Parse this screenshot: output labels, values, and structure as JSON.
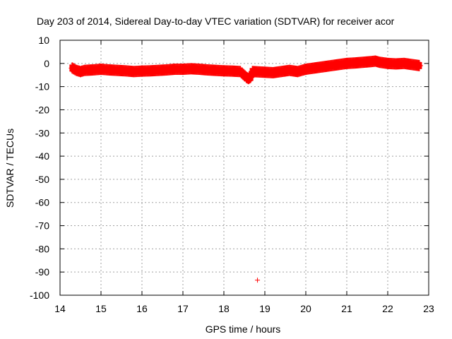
{
  "chart_data": {
    "type": "scatter",
    "title": "Day 203 of 2014, Sidereal Day-to-day VTEC variation (SDTVAR) for receiver acor",
    "xlabel": "GPS time / hours",
    "ylabel": "SDTVAR / TECUs",
    "xlim": [
      14,
      23
    ],
    "ylim": [
      -100,
      10
    ],
    "xticks": [
      14,
      15,
      16,
      17,
      18,
      19,
      20,
      21,
      22,
      23
    ],
    "yticks": [
      10,
      0,
      -10,
      -20,
      -30,
      -40,
      -50,
      -60,
      -70,
      -80,
      -90,
      -100
    ],
    "grid": true,
    "marker": "+",
    "color": "#ff0000",
    "series": [
      {
        "name": "SDTVAR",
        "x": [
          14.3,
          14.4,
          14.5,
          14.6,
          14.8,
          15.0,
          15.2,
          15.4,
          15.6,
          15.8,
          16.0,
          16.2,
          16.4,
          16.6,
          16.8,
          17.0,
          17.2,
          17.4,
          17.6,
          17.8,
          18.0,
          18.2,
          18.4,
          18.55,
          18.6,
          18.65,
          18.7,
          18.8,
          19.0,
          19.2,
          19.4,
          19.6,
          19.8,
          20.0,
          20.2,
          20.4,
          20.6,
          20.8,
          21.0,
          21.2,
          21.4,
          21.6,
          21.7,
          21.8,
          22.0,
          22.2,
          22.4,
          22.6,
          22.8,
          18.82
        ],
        "y": [
          -2.0,
          -3.0,
          -3.5,
          -3.0,
          -2.8,
          -2.5,
          -2.8,
          -3.0,
          -3.2,
          -3.5,
          -3.3,
          -3.2,
          -3.0,
          -2.8,
          -2.5,
          -2.5,
          -2.3,
          -2.5,
          -2.8,
          -3.0,
          -3.2,
          -3.3,
          -3.5,
          -6.0,
          -6.5,
          -6.0,
          -3.5,
          -3.6,
          -3.8,
          -4.0,
          -3.5,
          -3.0,
          -3.5,
          -2.5,
          -2.0,
          -1.5,
          -1.0,
          -0.5,
          0.0,
          0.2,
          0.5,
          0.8,
          1.0,
          0.5,
          0.0,
          -0.2,
          0.0,
          -0.5,
          -1.0,
          -93.5
        ]
      }
    ]
  }
}
